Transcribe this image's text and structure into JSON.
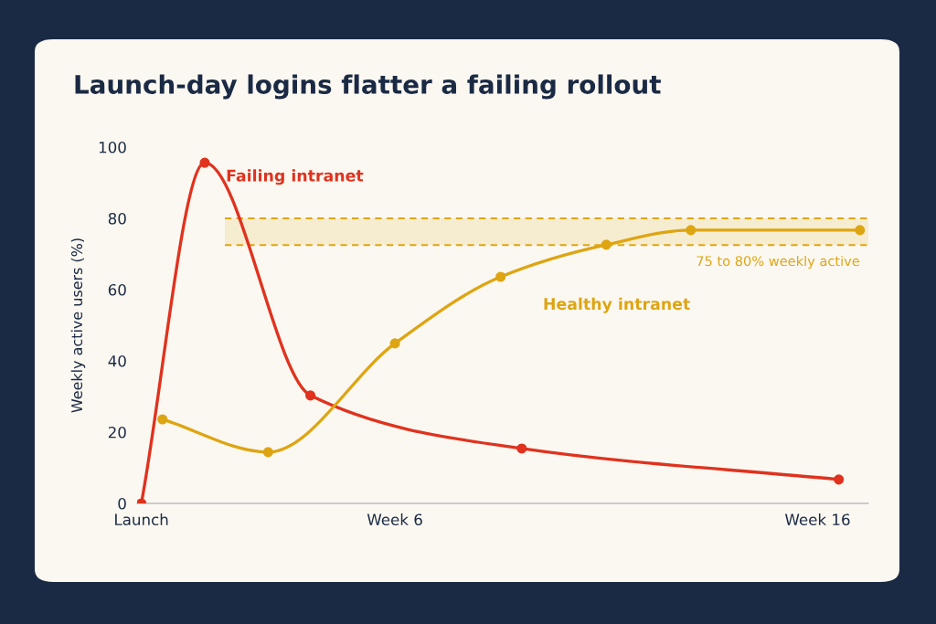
{
  "chart_data": {
    "type": "line",
    "title": "Launch-day logins flatter a failing rollout",
    "ylabel": "Weekly active users (%)",
    "categories": [
      "Launch",
      null,
      null,
      null,
      null,
      null,
      null,
      null,
      null,
      null,
      null,
      null,
      "Week 6",
      null,
      null,
      null,
      null,
      null,
      null,
      null,
      null,
      null,
      null,
      null,
      null,
      null,
      null,
      null,
      null,
      null,
      null,
      null,
      "Week 16",
      null,
      null
    ],
    "ylim": [
      0,
      100
    ],
    "yticks": [
      0,
      20,
      40,
      60,
      80,
      100
    ],
    "grid": false,
    "legend": false,
    "marker": "circle",
    "line_style": "solid",
    "series": [
      {
        "name": "Failing intranet",
        "color": "#e0321e",
        "values": [
          0,
          null,
          null,
          95.6,
          null,
          null,
          null,
          null,
          30.3,
          null,
          null,
          null,
          null,
          null,
          null,
          null,
          null,
          null,
          15.4,
          null,
          null,
          null,
          null,
          null,
          null,
          null,
          null,
          null,
          null,
          null,
          null,
          null,
          null,
          6.7,
          null
        ]
      },
      {
        "name": "Healthy intranet",
        "color": "#dea513",
        "values": [
          null,
          23.6,
          null,
          null,
          null,
          null,
          14.4,
          null,
          null,
          null,
          null,
          null,
          44.9,
          null,
          null,
          null,
          null,
          63.6,
          null,
          null,
          null,
          null,
          72.6,
          null,
          null,
          null,
          76.7,
          null,
          null,
          null,
          null,
          null,
          null,
          null,
          76.7
        ]
      }
    ],
    "ref_lines": [
      {
        "axis": "y",
        "value": 72.5,
        "color": "#dea513",
        "line_style": "dashed"
      },
      {
        "axis": "y",
        "value": 80,
        "color": "#dea513",
        "line_style": "dashed"
      }
    ],
    "bands": [
      {
        "axis": "y",
        "from": 72.5,
        "to": 80,
        "label": "75 to 80% weekly active",
        "color": "#dea513"
      }
    ]
  }
}
